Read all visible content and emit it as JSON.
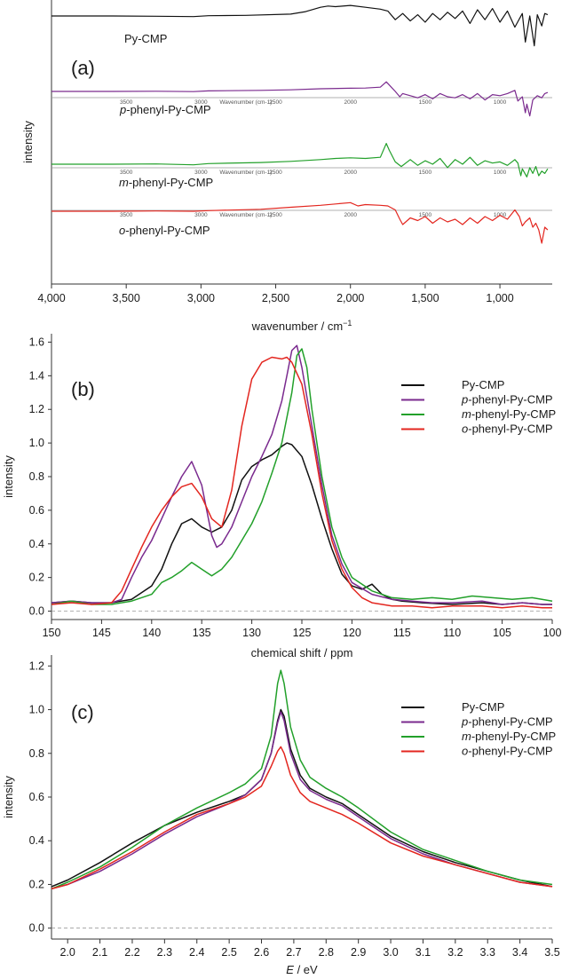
{
  "chart_data": [
    {
      "panel": "(a)",
      "type": "line",
      "xlabel": "wavenumber",
      "xunit": "cm",
      "xunit_exp": "−1",
      "ylabel": "intensity",
      "xlim": [
        4000,
        650
      ],
      "x_ticks": [
        4000,
        3500,
        3000,
        2500,
        2000,
        1500,
        1000
      ],
      "x_tick_labels": [
        "4,000",
        "3,500",
        "3,000",
        "2,500",
        "2,000",
        "1,500",
        "1,000"
      ],
      "sub_axis_label": "Wavenumber (cm-1)",
      "sub_axis_ticks": [
        "3500",
        "3000",
        "2500",
        "2000",
        "1500",
        "1000"
      ],
      "series": [
        {
          "name": "Py-CMP",
          "name_italic": "",
          "name_rest": "Py-CMP",
          "color": "#111111",
          "x": [
            4000,
            3600,
            3300,
            3050,
            2950,
            2700,
            2400,
            2300,
            2200,
            2150,
            2100,
            2000,
            1900,
            1800,
            1750,
            1700,
            1650,
            1600,
            1550,
            1500,
            1450,
            1400,
            1350,
            1300,
            1250,
            1200,
            1150,
            1100,
            1050,
            1000,
            950,
            900,
            850,
            830,
            800,
            770,
            750,
            720,
            700,
            680
          ],
          "y": [
            0.0,
            0.0,
            -0.02,
            -0.05,
            0.02,
            0.05,
            0.15,
            0.35,
            0.7,
            0.8,
            0.75,
            0.85,
            0.7,
            0.55,
            0.4,
            -0.3,
            0.2,
            -0.4,
            0.1,
            -0.5,
            0.2,
            -0.3,
            0.3,
            -0.2,
            0.4,
            -0.6,
            0.5,
            -0.3,
            0.6,
            -0.5,
            0.4,
            -0.9,
            0.2,
            -2.1,
            0.0,
            -2.4,
            0.1,
            -0.8,
            0.2,
            0.1
          ]
        },
        {
          "name": "p-phenyl-Py-CMP",
          "name_italic": "p",
          "name_rest": "-phenyl-Py-CMP",
          "color": "#7a2a8e",
          "x": [
            4000,
            3600,
            3300,
            3050,
            2950,
            2600,
            2400,
            2200,
            2000,
            1900,
            1800,
            1760,
            1740,
            1700,
            1670,
            1650,
            1600,
            1550,
            1500,
            1450,
            1400,
            1350,
            1300,
            1250,
            1200,
            1150,
            1100,
            1050,
            1000,
            950,
            900,
            880,
            850,
            830,
            820,
            800,
            780,
            750,
            720,
            700,
            680
          ],
          "y": [
            0.0,
            0.0,
            0.02,
            -0.02,
            0.05,
            0.1,
            0.15,
            0.25,
            0.3,
            0.32,
            0.4,
            0.9,
            0.6,
            0.0,
            -0.5,
            -0.2,
            -0.4,
            -0.6,
            -0.3,
            -0.7,
            -0.2,
            -0.5,
            -0.6,
            -0.3,
            -0.7,
            -0.2,
            -0.8,
            -0.3,
            -0.4,
            -0.2,
            0.1,
            -0.9,
            -0.5,
            -2.0,
            -1.2,
            -2.3,
            -0.8,
            -0.4,
            -0.6,
            -0.2,
            -0.1
          ]
        },
        {
          "name": "m-phenyl-Py-CMP",
          "name_italic": "m",
          "name_rest": "-phenyl-Py-CMP",
          "color": "#22a02a",
          "x": [
            4000,
            3600,
            3300,
            3050,
            2950,
            2600,
            2400,
            2200,
            2100,
            2000,
            1900,
            1800,
            1760,
            1740,
            1700,
            1660,
            1600,
            1550,
            1500,
            1450,
            1400,
            1350,
            1300,
            1250,
            1200,
            1150,
            1100,
            1050,
            1000,
            950,
            900,
            880,
            860,
            850,
            820,
            800,
            780,
            760,
            740,
            720,
            700,
            680
          ],
          "y": [
            0.0,
            0.0,
            0.02,
            -0.05,
            0.05,
            0.15,
            0.25,
            0.4,
            0.5,
            0.55,
            0.5,
            0.6,
            1.8,
            1.2,
            0.2,
            -0.2,
            0.4,
            -0.1,
            0.3,
            0.0,
            0.5,
            -0.3,
            0.4,
            0.0,
            0.6,
            -0.1,
            0.3,
            0.1,
            0.2,
            -0.1,
            0.4,
            0.1,
            -1.0,
            -0.4,
            -1.1,
            -0.3,
            -0.8,
            -0.2,
            -1.0,
            -0.6,
            -0.8,
            -0.4
          ]
        },
        {
          "name": "o-phenyl-Py-CMP",
          "name_italic": "o",
          "name_rest": "-phenyl-Py-CMP",
          "color": "#e3261f",
          "x": [
            4000,
            3600,
            3300,
            3050,
            2950,
            2600,
            2400,
            2200,
            2100,
            2000,
            1950,
            1900,
            1800,
            1750,
            1700,
            1670,
            1650,
            1600,
            1550,
            1500,
            1450,
            1400,
            1350,
            1300,
            1250,
            1200,
            1150,
            1100,
            1050,
            1000,
            950,
            900,
            870,
            850,
            830,
            800,
            780,
            760,
            740,
            720,
            700,
            680
          ],
          "y": [
            0.0,
            0.0,
            0.02,
            0.0,
            0.05,
            0.15,
            0.3,
            0.45,
            0.55,
            0.65,
            0.4,
            0.5,
            0.45,
            0.4,
            0.1,
            -0.6,
            -1.0,
            -0.5,
            -0.7,
            -0.4,
            -0.9,
            -0.5,
            -0.8,
            -0.6,
            -1.0,
            -0.5,
            -0.9,
            -0.4,
            -0.7,
            -0.3,
            -0.6,
            0.1,
            -0.4,
            -1.1,
            -0.8,
            -0.5,
            -1.2,
            -0.9,
            -1.4,
            -2.4,
            -1.2,
            -1.4
          ]
        }
      ]
    },
    {
      "panel": "(b)",
      "type": "line",
      "xlabel": "chemical shift",
      "xunit": "ppm",
      "ylabel": "intensity",
      "xlim": [
        150,
        100
      ],
      "ylim": [
        -0.05,
        1.65
      ],
      "x_ticks": [
        150,
        145,
        140,
        135,
        130,
        125,
        120,
        115,
        110,
        105,
        100
      ],
      "y_ticks": [
        0.0,
        0.2,
        0.4,
        0.6,
        0.8,
        1.0,
        1.2,
        1.4,
        1.6
      ],
      "baseline": 0.0,
      "series": [
        {
          "name": "Py-CMP",
          "name_italic": "",
          "name_rest": "Py-CMP",
          "color": "#111111",
          "x": [
            150,
            148,
            146,
            144,
            142,
            140,
            139,
            138,
            137,
            136,
            135,
            134,
            133,
            132,
            131,
            130,
            129,
            128,
            127,
            126.5,
            126,
            125,
            124,
            123,
            122,
            121,
            120,
            119,
            118,
            117,
            116,
            115,
            113,
            110,
            107,
            105,
            103,
            101,
            100
          ],
          "y": [
            0.05,
            0.06,
            0.05,
            0.05,
            0.07,
            0.15,
            0.25,
            0.4,
            0.52,
            0.55,
            0.5,
            0.47,
            0.5,
            0.6,
            0.78,
            0.86,
            0.9,
            0.93,
            0.98,
            1.0,
            0.99,
            0.92,
            0.75,
            0.55,
            0.37,
            0.22,
            0.15,
            0.13,
            0.16,
            0.1,
            0.07,
            0.06,
            0.05,
            0.04,
            0.05,
            0.04,
            0.05,
            0.04,
            0.04
          ]
        },
        {
          "name": "p-phenyl-Py-CMP",
          "name_italic": "p",
          "name_rest": "-phenyl-Py-CMP",
          "color": "#7a2a8e",
          "x": [
            150,
            148,
            146,
            144,
            143,
            142,
            141,
            140,
            139,
            138,
            137,
            136,
            135,
            134,
            133.5,
            133,
            132,
            131,
            130,
            129,
            128,
            127,
            126.5,
            126,
            125.5,
            125,
            124,
            123,
            122,
            121,
            120,
            118,
            116,
            114,
            112,
            110,
            107,
            105,
            103,
            101,
            100
          ],
          "y": [
            0.05,
            0.06,
            0.05,
            0.05,
            0.07,
            0.2,
            0.32,
            0.42,
            0.55,
            0.68,
            0.8,
            0.89,
            0.75,
            0.45,
            0.38,
            0.4,
            0.5,
            0.65,
            0.8,
            0.92,
            1.05,
            1.25,
            1.4,
            1.55,
            1.58,
            1.45,
            1.1,
            0.75,
            0.45,
            0.28,
            0.17,
            0.1,
            0.07,
            0.06,
            0.05,
            0.05,
            0.06,
            0.04,
            0.05,
            0.04,
            0.04
          ]
        },
        {
          "name": "m-phenyl-Py-CMP",
          "name_italic": "m",
          "name_rest": "-phenyl-Py-CMP",
          "color": "#22a02a",
          "x": [
            150,
            148,
            146,
            144,
            142,
            140,
            139,
            138,
            137,
            136,
            135,
            134,
            133,
            132,
            131,
            130,
            129,
            128,
            127,
            126,
            125.5,
            125,
            124.5,
            124,
            123,
            122,
            121,
            120,
            118,
            116,
            114,
            112,
            110,
            108,
            106,
            104,
            102,
            100
          ],
          "y": [
            0.04,
            0.06,
            0.04,
            0.04,
            0.06,
            0.1,
            0.17,
            0.2,
            0.24,
            0.29,
            0.25,
            0.21,
            0.25,
            0.32,
            0.42,
            0.52,
            0.65,
            0.82,
            1.0,
            1.3,
            1.52,
            1.56,
            1.45,
            1.2,
            0.8,
            0.5,
            0.32,
            0.2,
            0.12,
            0.08,
            0.07,
            0.08,
            0.07,
            0.09,
            0.08,
            0.07,
            0.08,
            0.06
          ]
        },
        {
          "name": "o-phenyl-Py-CMP",
          "name_italic": "o",
          "name_rest": "-phenyl-Py-CMP",
          "color": "#e3261f",
          "x": [
            150,
            148,
            146,
            144,
            143,
            142,
            141,
            140,
            139,
            138,
            137,
            136,
            135,
            134,
            133,
            132,
            131,
            130,
            129,
            128,
            127,
            126.5,
            126,
            125,
            124,
            123,
            122,
            121,
            120,
            119,
            118,
            116,
            114,
            112,
            110,
            107,
            105,
            103,
            101,
            100
          ],
          "y": [
            0.04,
            0.05,
            0.04,
            0.05,
            0.12,
            0.25,
            0.38,
            0.5,
            0.6,
            0.68,
            0.74,
            0.76,
            0.68,
            0.55,
            0.5,
            0.72,
            1.1,
            1.38,
            1.48,
            1.51,
            1.5,
            1.51,
            1.48,
            1.35,
            1.05,
            0.7,
            0.42,
            0.25,
            0.14,
            0.08,
            0.05,
            0.03,
            0.03,
            0.02,
            0.03,
            0.03,
            0.02,
            0.03,
            0.02,
            0.02
          ]
        }
      ]
    },
    {
      "panel": "(c)",
      "type": "line",
      "xlabel": "E",
      "xunit": "eV",
      "ylabel": "intensity",
      "xlim": [
        1.95,
        3.5
      ],
      "ylim": [
        -0.05,
        1.25
      ],
      "x_ticks": [
        2.0,
        2.1,
        2.2,
        2.3,
        2.4,
        2.5,
        2.6,
        2.7,
        2.8,
        2.9,
        3.0,
        3.1,
        3.2,
        3.3,
        3.4,
        3.5
      ],
      "y_ticks": [
        0.0,
        0.2,
        0.4,
        0.6,
        0.8,
        1.0,
        1.2
      ],
      "baseline": 0.0,
      "series": [
        {
          "name": "Py-CMP",
          "name_italic": "",
          "name_rest": "Py-CMP",
          "color": "#111111",
          "x": [
            1.95,
            2.0,
            2.1,
            2.2,
            2.3,
            2.4,
            2.5,
            2.55,
            2.6,
            2.63,
            2.65,
            2.66,
            2.67,
            2.69,
            2.72,
            2.75,
            2.8,
            2.85,
            2.9,
            3.0,
            3.1,
            3.2,
            3.3,
            3.4,
            3.5
          ],
          "y": [
            0.19,
            0.22,
            0.3,
            0.39,
            0.47,
            0.53,
            0.58,
            0.61,
            0.68,
            0.8,
            0.95,
            1.0,
            0.97,
            0.82,
            0.7,
            0.64,
            0.6,
            0.57,
            0.52,
            0.42,
            0.35,
            0.3,
            0.26,
            0.22,
            0.19
          ]
        },
        {
          "name": "p-phenyl-Py-CMP",
          "name_italic": "p",
          "name_rest": "-phenyl-Py-CMP",
          "color": "#7a2a8e",
          "x": [
            1.95,
            2.0,
            2.1,
            2.2,
            2.3,
            2.4,
            2.5,
            2.55,
            2.6,
            2.63,
            2.65,
            2.66,
            2.67,
            2.69,
            2.72,
            2.75,
            2.8,
            2.85,
            2.9,
            3.0,
            3.1,
            3.2,
            3.3,
            3.4,
            3.5
          ],
          "y": [
            0.18,
            0.2,
            0.26,
            0.34,
            0.43,
            0.51,
            0.57,
            0.61,
            0.68,
            0.8,
            0.94,
            0.99,
            0.95,
            0.8,
            0.68,
            0.63,
            0.59,
            0.56,
            0.51,
            0.41,
            0.34,
            0.29,
            0.25,
            0.21,
            0.19
          ]
        },
        {
          "name": "m-phenyl-Py-CMP",
          "name_italic": "m",
          "name_rest": "-phenyl-Py-CMP",
          "color": "#22a02a",
          "x": [
            1.95,
            2.0,
            2.1,
            2.2,
            2.3,
            2.4,
            2.5,
            2.55,
            2.6,
            2.63,
            2.65,
            2.66,
            2.67,
            2.69,
            2.72,
            2.75,
            2.8,
            2.85,
            2.9,
            3.0,
            3.1,
            3.2,
            3.3,
            3.4,
            3.5
          ],
          "y": [
            0.18,
            0.21,
            0.28,
            0.37,
            0.47,
            0.55,
            0.62,
            0.66,
            0.73,
            0.88,
            1.12,
            1.18,
            1.12,
            0.92,
            0.77,
            0.69,
            0.64,
            0.6,
            0.55,
            0.44,
            0.36,
            0.31,
            0.26,
            0.22,
            0.2
          ]
        },
        {
          "name": "o-phenyl-Py-CMP",
          "name_italic": "o",
          "name_rest": "-phenyl-Py-CMP",
          "color": "#e3261f",
          "x": [
            1.95,
            2.0,
            2.1,
            2.2,
            2.3,
            2.4,
            2.5,
            2.55,
            2.6,
            2.63,
            2.65,
            2.66,
            2.67,
            2.69,
            2.72,
            2.75,
            2.8,
            2.85,
            2.9,
            3.0,
            3.1,
            3.2,
            3.3,
            3.4,
            3.5
          ],
          "y": [
            0.18,
            0.2,
            0.27,
            0.35,
            0.44,
            0.52,
            0.57,
            0.6,
            0.65,
            0.74,
            0.81,
            0.83,
            0.8,
            0.7,
            0.62,
            0.58,
            0.55,
            0.52,
            0.48,
            0.39,
            0.33,
            0.29,
            0.25,
            0.21,
            0.19
          ]
        }
      ]
    }
  ]
}
